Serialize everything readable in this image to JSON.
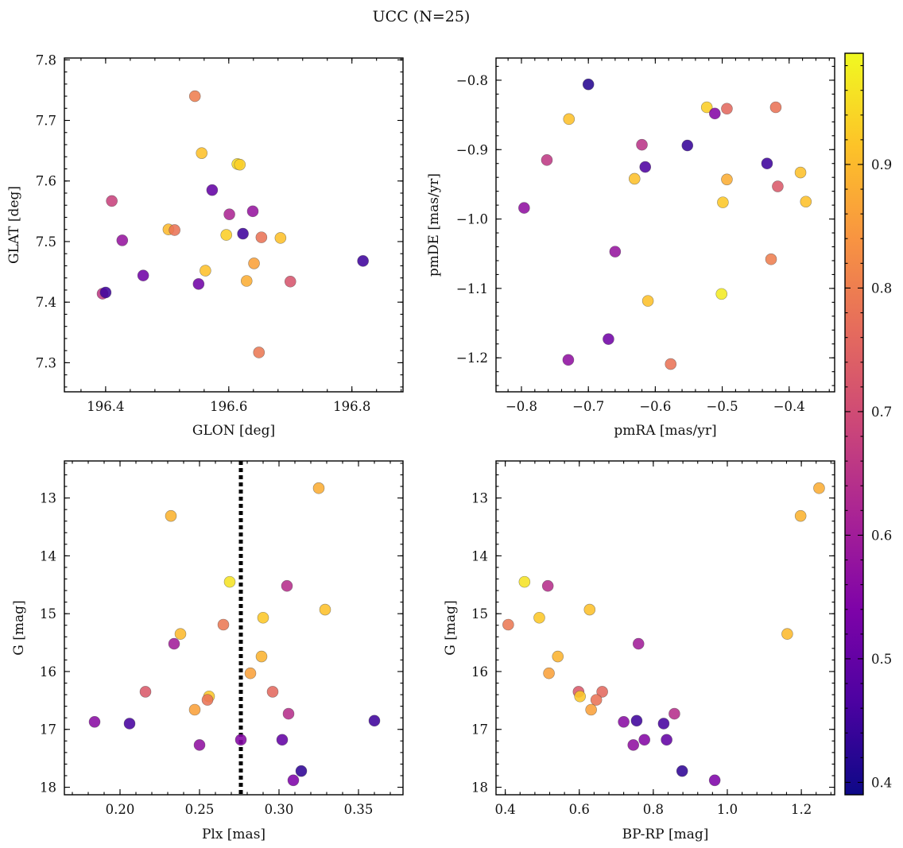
{
  "figure": {
    "title": "UCC (N=25)"
  },
  "colorbar": {
    "vmin": 0.39,
    "vmax": 0.99,
    "ticks": [
      0.4,
      0.5,
      0.6,
      0.7,
      0.8,
      0.9
    ],
    "tick_labels": [
      "0.4",
      "0.5",
      "0.6",
      "0.7",
      "0.8",
      "0.9"
    ],
    "colormap": "plasma"
  },
  "chart_data": [
    {
      "type": "scatter",
      "name": "glon-glat",
      "xlabel": "GLON [deg]",
      "ylabel": "GLAT [deg]",
      "xlim": [
        196.333,
        196.883
      ],
      "ylim": [
        7.252,
        7.803
      ],
      "y_inverted": false,
      "xticks": [
        196.4,
        196.6,
        196.8
      ],
      "xtick_labels": [
        "196.4",
        "196.6",
        "196.8"
      ],
      "yticks": [
        7.3,
        7.4,
        7.5,
        7.6,
        7.7,
        7.8
      ],
      "ytick_labels": [
        "7.3",
        "7.4",
        "7.5",
        "7.6",
        "7.7",
        "7.8"
      ],
      "points": [
        {
          "x": 196.545,
          "y": 7.74,
          "c": 0.8
        },
        {
          "x": 196.556,
          "y": 7.646,
          "c": 0.91
        },
        {
          "x": 196.614,
          "y": 7.628,
          "c": 0.95
        },
        {
          "x": 196.618,
          "y": 7.627,
          "c": 0.93
        },
        {
          "x": 196.573,
          "y": 7.585,
          "c": 0.5
        },
        {
          "x": 196.41,
          "y": 7.567,
          "c": 0.68
        },
        {
          "x": 196.601,
          "y": 7.545,
          "c": 0.62
        },
        {
          "x": 196.639,
          "y": 7.55,
          "c": 0.58
        },
        {
          "x": 196.502,
          "y": 7.52,
          "c": 0.9
        },
        {
          "x": 196.512,
          "y": 7.519,
          "c": 0.78
        },
        {
          "x": 196.596,
          "y": 7.511,
          "c": 0.93
        },
        {
          "x": 196.623,
          "y": 7.513,
          "c": 0.45
        },
        {
          "x": 196.684,
          "y": 7.506,
          "c": 0.91
        },
        {
          "x": 196.653,
          "y": 7.507,
          "c": 0.78
        },
        {
          "x": 196.427,
          "y": 7.502,
          "c": 0.58
        },
        {
          "x": 196.641,
          "y": 7.464,
          "c": 0.86
        },
        {
          "x": 196.562,
          "y": 7.452,
          "c": 0.91
        },
        {
          "x": 196.818,
          "y": 7.468,
          "c": 0.45
        },
        {
          "x": 196.461,
          "y": 7.444,
          "c": 0.52
        },
        {
          "x": 196.551,
          "y": 7.43,
          "c": 0.52
        },
        {
          "x": 196.629,
          "y": 7.435,
          "c": 0.88
        },
        {
          "x": 196.7,
          "y": 7.434,
          "c": 0.72
        },
        {
          "x": 196.395,
          "y": 7.414,
          "c": 0.66
        },
        {
          "x": 196.4,
          "y": 7.416,
          "c": 0.45
        },
        {
          "x": 196.649,
          "y": 7.317,
          "c": 0.79
        }
      ]
    },
    {
      "type": "scatter",
      "name": "pmra-pmde",
      "xlabel": "pmRA [mas/yr]",
      "ylabel": "pmDE [mas/yr]",
      "xlim": [
        -0.838,
        -0.332
      ],
      "ylim": [
        -1.249,
        -0.768
      ],
      "y_inverted": false,
      "xticks": [
        -0.8,
        -0.7,
        -0.6,
        -0.5,
        -0.4
      ],
      "xtick_labels": [
        "−0.8",
        "−0.7",
        "−0.6",
        "−0.5",
        "−0.4"
      ],
      "yticks": [
        -1.2,
        -1.1,
        -1.0,
        -0.9,
        -0.8
      ],
      "ytick_labels": [
        "−1.2",
        "−1.1",
        "−1.0",
        "−0.9",
        "−0.8"
      ],
      "points": [
        {
          "x": -0.7,
          "y": -0.806,
          "c": 0.42
        },
        {
          "x": -0.523,
          "y": -0.839,
          "c": 0.93
        },
        {
          "x": -0.511,
          "y": -0.848,
          "c": 0.55
        },
        {
          "x": -0.493,
          "y": -0.841,
          "c": 0.76
        },
        {
          "x": -0.42,
          "y": -0.839,
          "c": 0.78
        },
        {
          "x": -0.729,
          "y": -0.856,
          "c": 0.91
        },
        {
          "x": -0.62,
          "y": -0.893,
          "c": 0.65
        },
        {
          "x": -0.552,
          "y": -0.894,
          "c": 0.44
        },
        {
          "x": -0.762,
          "y": -0.915,
          "c": 0.66
        },
        {
          "x": -0.615,
          "y": -0.925,
          "c": 0.47
        },
        {
          "x": -0.631,
          "y": -0.942,
          "c": 0.91
        },
        {
          "x": -0.493,
          "y": -0.943,
          "c": 0.88
        },
        {
          "x": -0.433,
          "y": -0.92,
          "c": 0.45
        },
        {
          "x": -0.383,
          "y": -0.933,
          "c": 0.91
        },
        {
          "x": -0.417,
          "y": -0.953,
          "c": 0.73
        },
        {
          "x": -0.375,
          "y": -0.975,
          "c": 0.91
        },
        {
          "x": -0.499,
          "y": -0.976,
          "c": 0.92
        },
        {
          "x": -0.796,
          "y": -0.984,
          "c": 0.57
        },
        {
          "x": -0.66,
          "y": -1.047,
          "c": 0.58
        },
        {
          "x": -0.427,
          "y": -1.058,
          "c": 0.8
        },
        {
          "x": -0.611,
          "y": -1.118,
          "c": 0.91
        },
        {
          "x": -0.501,
          "y": -1.108,
          "c": 0.97
        },
        {
          "x": -0.67,
          "y": -1.173,
          "c": 0.52
        },
        {
          "x": -0.73,
          "y": -1.203,
          "c": 0.57
        },
        {
          "x": -0.577,
          "y": -1.209,
          "c": 0.78
        }
      ]
    },
    {
      "type": "scatter",
      "name": "plx-g",
      "xlabel": "Plx [mas]",
      "ylabel": "G [mag]",
      "xlim": [
        0.165,
        0.378
      ],
      "ylim": [
        12.36,
        18.13
      ],
      "y_inverted": true,
      "xticks": [
        0.2,
        0.25,
        0.3,
        0.35
      ],
      "xtick_labels": [
        "0.20",
        "0.25",
        "0.30",
        "0.35"
      ],
      "yticks": [
        13,
        14,
        15,
        16,
        17,
        18
      ],
      "ytick_labels": [
        "13",
        "14",
        "15",
        "16",
        "17",
        "18"
      ],
      "vline": {
        "x": 0.276,
        "style": "dotted"
      },
      "points": [
        {
          "x": 0.325,
          "y": 12.83,
          "c": 0.88
        },
        {
          "x": 0.232,
          "y": 13.31,
          "c": 0.89
        },
        {
          "x": 0.269,
          "y": 14.45,
          "c": 0.96
        },
        {
          "x": 0.305,
          "y": 14.52,
          "c": 0.64
        },
        {
          "x": 0.329,
          "y": 14.93,
          "c": 0.91
        },
        {
          "x": 0.29,
          "y": 15.07,
          "c": 0.92
        },
        {
          "x": 0.265,
          "y": 15.19,
          "c": 0.79
        },
        {
          "x": 0.238,
          "y": 15.35,
          "c": 0.9
        },
        {
          "x": 0.234,
          "y": 15.52,
          "c": 0.6
        },
        {
          "x": 0.289,
          "y": 15.74,
          "c": 0.89
        },
        {
          "x": 0.282,
          "y": 16.03,
          "c": 0.86
        },
        {
          "x": 0.216,
          "y": 16.35,
          "c": 0.73
        },
        {
          "x": 0.296,
          "y": 16.35,
          "c": 0.76
        },
        {
          "x": 0.256,
          "y": 16.43,
          "c": 0.92
        },
        {
          "x": 0.255,
          "y": 16.49,
          "c": 0.78
        },
        {
          "x": 0.247,
          "y": 16.66,
          "c": 0.86
        },
        {
          "x": 0.306,
          "y": 16.73,
          "c": 0.64
        },
        {
          "x": 0.184,
          "y": 16.87,
          "c": 0.56
        },
        {
          "x": 0.206,
          "y": 16.9,
          "c": 0.46
        },
        {
          "x": 0.36,
          "y": 16.85,
          "c": 0.45
        },
        {
          "x": 0.276,
          "y": 17.18,
          "c": 0.55
        },
        {
          "x": 0.25,
          "y": 17.27,
          "c": 0.57
        },
        {
          "x": 0.302,
          "y": 17.18,
          "c": 0.5
        },
        {
          "x": 0.314,
          "y": 17.72,
          "c": 0.43
        },
        {
          "x": 0.309,
          "y": 17.88,
          "c": 0.54
        }
      ]
    },
    {
      "type": "scatter",
      "name": "bprp-g",
      "xlabel": "BP-RP [mag]",
      "ylabel": "G [mag]",
      "xlim": [
        0.375,
        1.29
      ],
      "ylim": [
        12.36,
        18.13
      ],
      "y_inverted": true,
      "xticks": [
        0.4,
        0.6,
        0.8,
        1.0,
        1.2
      ],
      "xtick_labels": [
        "0.4",
        "0.6",
        "0.8",
        "1.0",
        "1.2"
      ],
      "yticks": [
        13,
        14,
        15,
        16,
        17,
        18
      ],
      "ytick_labels": [
        "13",
        "14",
        "15",
        "16",
        "17",
        "18"
      ],
      "points": [
        {
          "x": 1.248,
          "y": 12.83,
          "c": 0.88
        },
        {
          "x": 1.198,
          "y": 13.31,
          "c": 0.89
        },
        {
          "x": 0.452,
          "y": 14.45,
          "c": 0.96
        },
        {
          "x": 0.515,
          "y": 14.52,
          "c": 0.64
        },
        {
          "x": 0.628,
          "y": 14.93,
          "c": 0.91
        },
        {
          "x": 0.492,
          "y": 15.07,
          "c": 0.92
        },
        {
          "x": 0.408,
          "y": 15.19,
          "c": 0.79
        },
        {
          "x": 1.162,
          "y": 15.35,
          "c": 0.9
        },
        {
          "x": 0.76,
          "y": 15.52,
          "c": 0.6
        },
        {
          "x": 0.542,
          "y": 15.74,
          "c": 0.89
        },
        {
          "x": 0.518,
          "y": 16.03,
          "c": 0.86
        },
        {
          "x": 0.598,
          "y": 16.35,
          "c": 0.73
        },
        {
          "x": 0.662,
          "y": 16.35,
          "c": 0.76
        },
        {
          "x": 0.602,
          "y": 16.43,
          "c": 0.92
        },
        {
          "x": 0.646,
          "y": 16.49,
          "c": 0.78
        },
        {
          "x": 0.632,
          "y": 16.66,
          "c": 0.86
        },
        {
          "x": 0.857,
          "y": 16.73,
          "c": 0.64
        },
        {
          "x": 0.72,
          "y": 16.87,
          "c": 0.56
        },
        {
          "x": 0.828,
          "y": 16.9,
          "c": 0.46
        },
        {
          "x": 0.755,
          "y": 16.85,
          "c": 0.45
        },
        {
          "x": 0.776,
          "y": 17.18,
          "c": 0.55
        },
        {
          "x": 0.746,
          "y": 17.27,
          "c": 0.57
        },
        {
          "x": 0.836,
          "y": 17.18,
          "c": 0.5
        },
        {
          "x": 0.878,
          "y": 17.72,
          "c": 0.43
        },
        {
          "x": 0.966,
          "y": 17.88,
          "c": 0.54
        }
      ]
    }
  ]
}
